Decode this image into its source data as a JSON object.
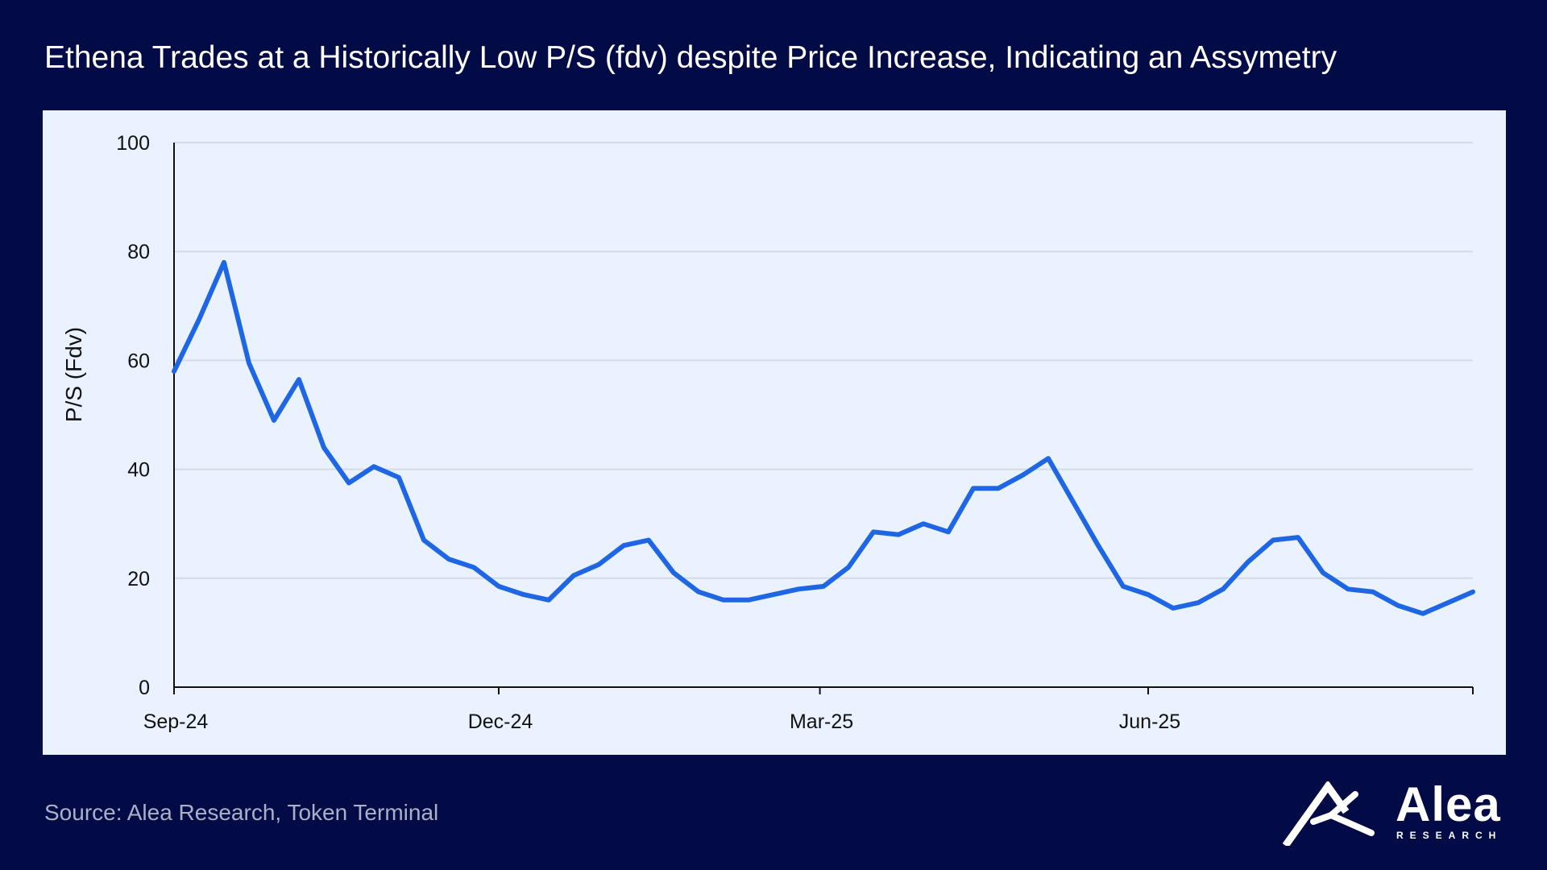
{
  "title": "Ethena Trades at a Historically Low P/S (fdv) despite Price Increase, Indicating an Assymetry",
  "source": "Source: Alea Research, Token Terminal",
  "logo": {
    "word": "Alea",
    "sub": "RESEARCH",
    "icon": "alea-mark-icon"
  },
  "colors": {
    "background": "#020b45",
    "panel": "#e9f2fe",
    "line": "#1f66e5",
    "grid": "#d5dbe4",
    "axis": "#111111"
  },
  "chart_data": {
    "type": "line",
    "title": "Ethena Trades at a Historically Low P/S (fdv) despite Price Increase, Indicating an Assymetry",
    "xlabel": "",
    "ylabel": "P/S (Fdv)",
    "ylim": [
      0,
      100
    ],
    "yticks": [
      0,
      20,
      40,
      60,
      80,
      100
    ],
    "grid": "horizontal",
    "legend": "none",
    "x_tick_labels": [
      {
        "label": "Sep-24",
        "date": "2024-09-01"
      },
      {
        "label": "Dec-24",
        "date": "2024-12-01"
      },
      {
        "label": "Mar-25",
        "date": "2025-03-01"
      },
      {
        "label": "Jun-25",
        "date": "2025-06-01"
      }
    ],
    "x_end": "2025-08-31",
    "series": [
      {
        "x": [
          "2024-09-01",
          "2024-09-08",
          "2024-09-15",
          "2024-09-22",
          "2024-09-29",
          "2024-10-06",
          "2024-10-13",
          "2024-10-20",
          "2024-10-27",
          "2024-11-03",
          "2024-11-10",
          "2024-11-17",
          "2024-11-24",
          "2024-12-01",
          "2024-12-08",
          "2024-12-15",
          "2024-12-22",
          "2024-12-29",
          "2025-01-05",
          "2025-01-12",
          "2025-01-19",
          "2025-01-26",
          "2025-02-02",
          "2025-02-09",
          "2025-02-16",
          "2025-02-23",
          "2025-03-02",
          "2025-03-09",
          "2025-03-16",
          "2025-03-23",
          "2025-03-30",
          "2025-04-06",
          "2025-04-13",
          "2025-04-20",
          "2025-04-27",
          "2025-05-04",
          "2025-05-11",
          "2025-05-18",
          "2025-05-25",
          "2025-06-01",
          "2025-06-08",
          "2025-06-15",
          "2025-06-22",
          "2025-06-29",
          "2025-07-06",
          "2025-07-13",
          "2025-07-20",
          "2025-07-27",
          "2025-08-03",
          "2025-08-10",
          "2025-08-17",
          "2025-08-24",
          "2025-08-31"
        ],
        "y": [
          58,
          67.5,
          78,
          59.5,
          49,
          56.5,
          44,
          37.5,
          40.5,
          38.5,
          27,
          23.5,
          22,
          18.5,
          17,
          16,
          20.5,
          22.5,
          26,
          27,
          21,
          17.5,
          16,
          16,
          17,
          18,
          18.5,
          22,
          28.5,
          28,
          30,
          28.5,
          36.5,
          36.5,
          39,
          42,
          34,
          26,
          18.5,
          17,
          14.5,
          15.5,
          18,
          23,
          27,
          27.5,
          21,
          18,
          17.5,
          15,
          13.5,
          15.5,
          17.5
        ]
      }
    ]
  }
}
